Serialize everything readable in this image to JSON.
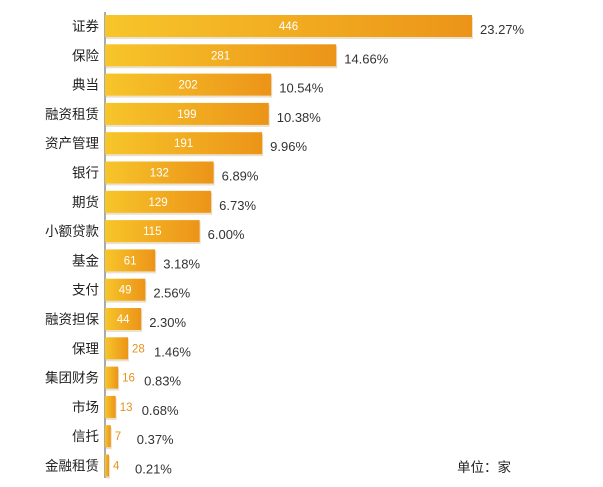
{
  "chart_data": {
    "type": "bar",
    "orientation": "horizontal",
    "categories": [
      "证券",
      "保险",
      "典当",
      "融资租赁",
      "资产管理",
      "银行",
      "期货",
      "小额贷款",
      "基金",
      "支付",
      "融资担保",
      "保理",
      "集团财务",
      "市场",
      "信托",
      "金融租赁"
    ],
    "values": [
      446,
      281,
      202,
      199,
      191,
      132,
      129,
      115,
      61,
      49,
      44,
      28,
      16,
      13,
      7,
      4
    ],
    "percent_labels": [
      "23.27%",
      "14.66%",
      "10.54%",
      "10.38%",
      "9.96%",
      "6.89%",
      "6.73%",
      "6.00%",
      "3.18%",
      "2.56%",
      "2.30%",
      "1.46%",
      "0.83%",
      "0.68%",
      "0.37%",
      "0.21%"
    ],
    "unit_label": "单位：家",
    "xlim": [
      0,
      446
    ],
    "grid": false,
    "legend": "none",
    "colors": {
      "bar_light": "#f7c52a",
      "bar_dark": "#ec9418",
      "value_inside": "#ffffff",
      "value_outside": "#e8901e",
      "axis": "#555555"
    }
  }
}
